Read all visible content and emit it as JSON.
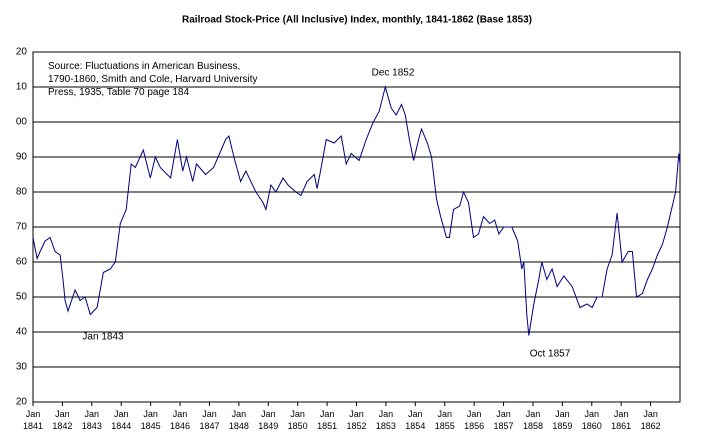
{
  "chart_data": {
    "type": "line",
    "title": "Railroad Stock-Price (All Inclusive) Index, monthly, 1841-1862 (Base 1853)",
    "source": [
      "Source: Fluctuations in American Business,",
      "1790-1860, Smith and Cole, Harvard University",
      "Press, 1935, Table 70  page 184"
    ],
    "annotations": [
      "Dec 1852",
      "Jan 1843",
      "Oct 1857"
    ],
    "xlim": [
      1841,
      1863
    ],
    "ylim": [
      20,
      120
    ],
    "yticks": [
      20,
      30,
      40,
      50,
      60,
      70,
      80,
      90,
      {
        "value": 100,
        "label": "00"
      },
      {
        "value": 110,
        "label": "10"
      },
      {
        "value": 120,
        "label": "20"
      }
    ],
    "xticks": [
      {
        "value": 1841,
        "label": "Jan 1841"
      },
      {
        "value": 1842,
        "label": "Jan 1842"
      },
      {
        "value": 1843,
        "label": "Jan 1843"
      },
      {
        "value": 1844,
        "label": "Jan 1844"
      },
      {
        "value": 1845,
        "label": "Jan 1845"
      },
      {
        "value": 1846,
        "label": "Jan 1846"
      },
      {
        "value": 1847,
        "label": "Jan 1847"
      },
      {
        "value": 1848,
        "label": "Jan 1848"
      },
      {
        "value": 1849,
        "label": "Jan 1849"
      },
      {
        "value": 1850,
        "label": "Jan 1850"
      },
      {
        "value": 1851,
        "label": "Jan 1851"
      },
      {
        "value": 1852,
        "label": "Jan 1852"
      },
      {
        "value": 1853,
        "label": "Jan 1853"
      },
      {
        "value": 1854,
        "label": "Jan 1854"
      },
      {
        "value": 1855,
        "label": "Jan 1855"
      },
      {
        "value": 1856,
        "label": "Jan 1856"
      },
      {
        "value": 1857,
        "label": "Jan 1857"
      },
      {
        "value": 1858,
        "label": "Jan 1858"
      },
      {
        "value": 1859,
        "label": "Jan 1859"
      },
      {
        "value": 1860,
        "label": "Jan 1860"
      },
      {
        "value": 1861,
        "label": "Jan 1861"
      },
      {
        "value": 1862,
        "label": "Jan 1862"
      }
    ],
    "grid": true,
    "x": [
      1841.0,
      1841.14,
      1841.24,
      1841.41,
      1841.58,
      1841.75,
      1841.92,
      1842.02,
      1842.09,
      1842.19,
      1842.43,
      1842.6,
      1842.77,
      1842.95,
      1843.18,
      1843.39,
      1843.63,
      1843.8,
      1843.97,
      1844.17,
      1844.34,
      1844.48,
      1844.75,
      1844.99,
      1845.16,
      1845.33,
      1845.68,
      1845.91,
      1846.09,
      1846.22,
      1846.43,
      1846.56,
      1846.87,
      1847.14,
      1847.55,
      1847.66,
      1847.83,
      1848.06,
      1848.24,
      1848.58,
      1848.82,
      1848.92,
      1849.09,
      1849.26,
      1849.5,
      1849.67,
      1849.94,
      1850.11,
      1850.32,
      1850.56,
      1850.66,
      1850.8,
      1850.97,
      1851.24,
      1851.48,
      1851.65,
      1851.82,
      1852.09,
      1852.33,
      1852.57,
      1852.77,
      1852.98,
      1853.18,
      1853.35,
      1853.53,
      1853.66,
      1853.8,
      1853.94,
      1854.11,
      1854.21,
      1854.41,
      1854.55,
      1854.72,
      1854.86,
      1855.06,
      1855.16,
      1855.3,
      1855.51,
      1855.64,
      1855.81,
      1855.98,
      1856.15,
      1856.32,
      1856.53,
      1856.7,
      1856.84,
      1857.01,
      1857.28,
      1857.48,
      1857.62,
      1857.69,
      1857.79,
      1857.86,
      1858.03,
      1858.2,
      1858.3,
      1858.47,
      1858.65,
      1858.82,
      1859.05,
      1859.33,
      1859.6,
      1859.84,
      1860.01,
      1860.18,
      1860.35,
      1860.52,
      1860.69,
      1860.86,
      1861.03,
      1861.24,
      1861.38,
      1861.52,
      1861.72,
      1861.89,
      1862.06,
      1862.23,
      1862.4,
      1862.57,
      1862.85,
      1862.96,
      1863.0
    ],
    "series": [
      {
        "name": "Railroad Stock-Price Index",
        "color": "#000080",
        "values": [
          67,
          61,
          63,
          66,
          67,
          63,
          62,
          55,
          49,
          46,
          52,
          49,
          50,
          45,
          47,
          57,
          58,
          60,
          71,
          75,
          88,
          87,
          92,
          84,
          90,
          87,
          84,
          95,
          86,
          90,
          83,
          88,
          85,
          87,
          95,
          96,
          90,
          83,
          86,
          80,
          77,
          75,
          82,
          80,
          84,
          82,
          80,
          79,
          83,
          85,
          81,
          87,
          95,
          94,
          96,
          88,
          91,
          89,
          95,
          100,
          103,
          110,
          104,
          102,
          105,
          102,
          95,
          89,
          95,
          98,
          94,
          90,
          78,
          73,
          67,
          67,
          75,
          76,
          80,
          77,
          67,
          68,
          73,
          71,
          72,
          68,
          70,
          70,
          66,
          58,
          60,
          45,
          39,
          48,
          55,
          60,
          55,
          58,
          53,
          56,
          53,
          47,
          48,
          47,
          50,
          50,
          58,
          62,
          74,
          60,
          63,
          63,
          50,
          51,
          55,
          58,
          62,
          65,
          70,
          80,
          91,
          88
        ]
      }
    ]
  }
}
